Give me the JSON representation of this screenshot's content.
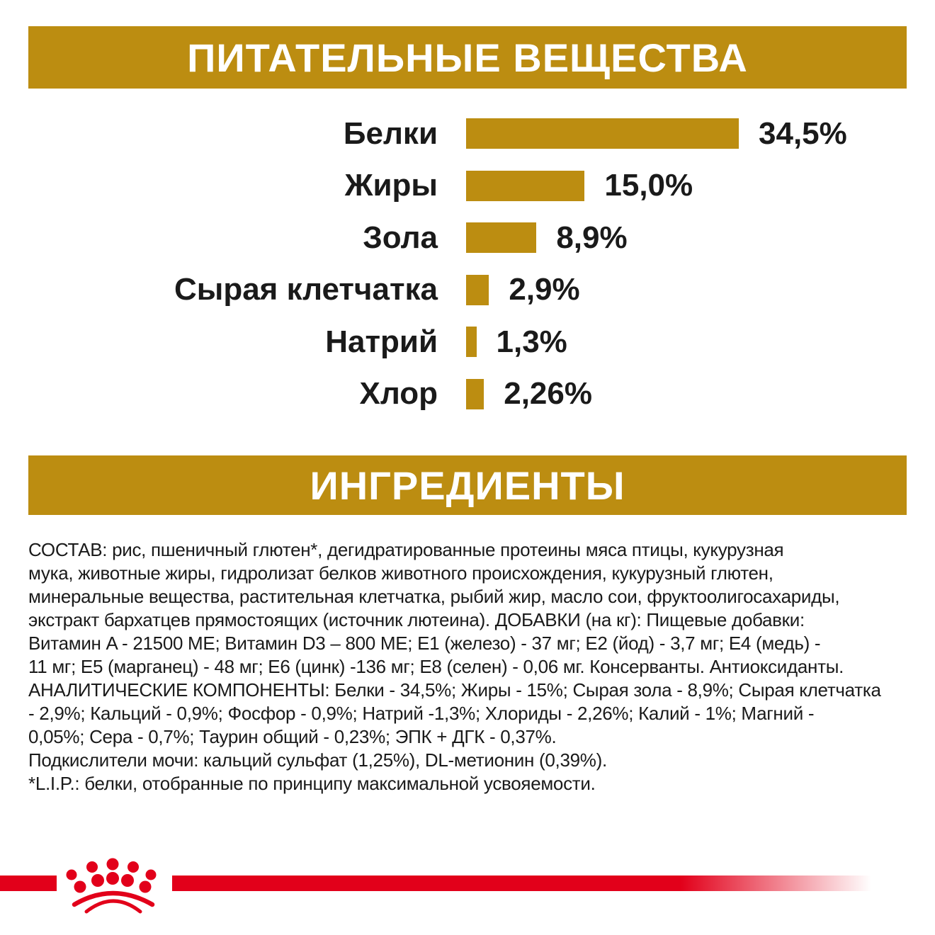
{
  "colors": {
    "gold": "#BC8D11",
    "red": "#E2001A",
    "text": "#1A1A1A",
    "banner_text": "#FFFFFF",
    "background": "#FFFFFF"
  },
  "sections": {
    "nutrients_banner": {
      "title": "ПИТАТЕЛЬНЫЕ ВЕЩЕСТВА"
    },
    "ingredients_banner": {
      "title": "ИНГРЕДИЕНТЫ"
    }
  },
  "chart_data": {
    "type": "bar",
    "orientation": "horizontal",
    "title": "ПИТАТЕЛЬНЫЕ ВЕЩЕСТВА",
    "categories": [
      "Белки",
      "Жиры",
      "Зола",
      "Сырая клетчатка",
      "Натрий",
      "Хлор"
    ],
    "values": [
      34.5,
      15.0,
      8.9,
      2.9,
      1.3,
      2.26
    ],
    "value_labels": [
      "34,5%",
      "15,0%",
      "8,9%",
      "2,9%",
      "1,3%",
      "2,26%"
    ],
    "unit": "%",
    "xlim": [
      0,
      38
    ],
    "grid": false,
    "legend": false,
    "bar_color": "#BC8D11"
  },
  "ingredients": {
    "lines": [
      "СОСТАВ: рис, пшеничный глютен*, дегидратированные протеины мяса птицы, кукурузная",
      "мука, животные жиры, гидролизат белков животного происхождения, кукурузный глютен,",
      "минеральные вещества, растительная клетчатка, рыбий жир, масло сои, фруктоолигосахариды,",
      "экстракт бархатцев прямостоящих (источник лютеина). ДОБАВКИ (на кг): Пищевые добавки:",
      "Витамин A - 21500 МЕ; Витамин D3 – 800 МЕ; E1 (железо) - 37 мг; E2 (йод) - 3,7 мг; E4 (медь) -",
      "11 мг; E5 (марганец) - 48 мг; E6 (цинк) -136 мг; E8 (селен) - 0,06 мг. Консерванты. Антиоксиданты.",
      "АНАЛИТИЧЕСКИЕ КОМПОНЕНТЫ: Белки - 34,5%; Жиры - 15%; Сырая зола - 8,9%; Сырая клетчатка",
      "- 2,9%; Кальций - 0,9%; Фосфор - 0,9%; Натрий -1,3%; Хлориды - 2,26%; Калий - 1%; Магний -",
      "0,05%; Сера - 0,7%; Таурин общий - 0,23%; ЭПК + ДГК - 0,37%.",
      "Подкислители мочи: кальций сульфат (1,25%), DL-метионин (0,39%).",
      "*L.I.P.: белки, отобранные по принципу максимальной усвояемости."
    ]
  },
  "footer": {
    "logo": "royal-canin-crown",
    "stripe_color": "#E2001A"
  }
}
